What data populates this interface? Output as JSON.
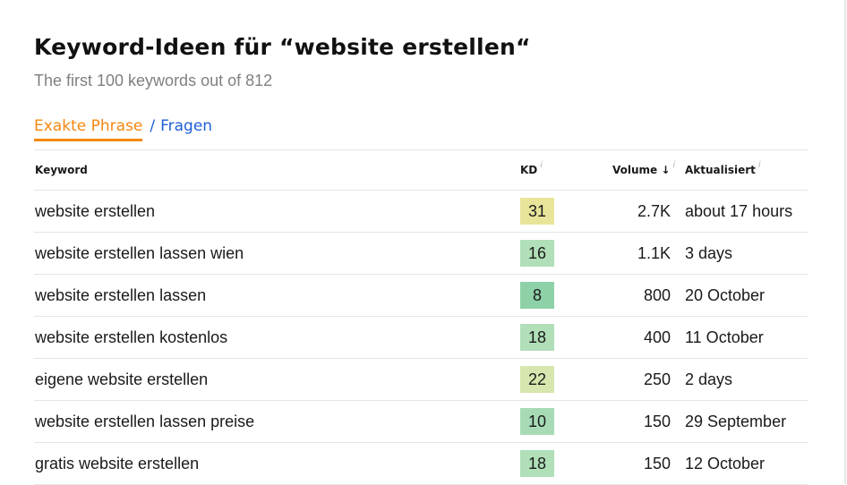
{
  "header": {
    "title": "Keyword-Ideen für “website erstellen“",
    "subtitle": "The first 100 keywords out of 812"
  },
  "tabs": [
    {
      "label": "Exakte Phrase",
      "active": true
    },
    {
      "label": "Fragen",
      "active": false
    }
  ],
  "tab_separator": "/",
  "table": {
    "columns": {
      "keyword": "Keyword",
      "kd": "KD",
      "volume": "Volume",
      "volume_sort_icon": "↓",
      "updated": "Aktualisiert",
      "info_icon": "i"
    },
    "rows": [
      {
        "keyword": "website erstellen",
        "kd": "31",
        "kd_color": "#e8e59a",
        "volume": "2.7K",
        "updated": "about 17 hours"
      },
      {
        "keyword": "website erstellen lassen wien",
        "kd": "16",
        "kd_color": "#b0dfb8",
        "volume": "1.1K",
        "updated": "3 days"
      },
      {
        "keyword": "website erstellen lassen",
        "kd": "8",
        "kd_color": "#8ed1a8",
        "volume": "800",
        "updated": "20 October"
      },
      {
        "keyword": "website erstellen kostenlos",
        "kd": "18",
        "kd_color": "#b0dfb8",
        "volume": "400",
        "updated": "11 October"
      },
      {
        "keyword": "eigene website erstellen",
        "kd": "22",
        "kd_color": "#d6e6ae",
        "volume": "250",
        "updated": "2 days"
      },
      {
        "keyword": "website erstellen lassen preise",
        "kd": "10",
        "kd_color": "#a6dbb6",
        "volume": "150",
        "updated": "29 September"
      },
      {
        "keyword": "gratis website erstellen",
        "kd": "18",
        "kd_color": "#b0dfb8",
        "volume": "150",
        "updated": "12 October"
      }
    ]
  },
  "colors": {
    "accent_orange": "#f5880f",
    "link_blue": "#1f5fd6"
  }
}
